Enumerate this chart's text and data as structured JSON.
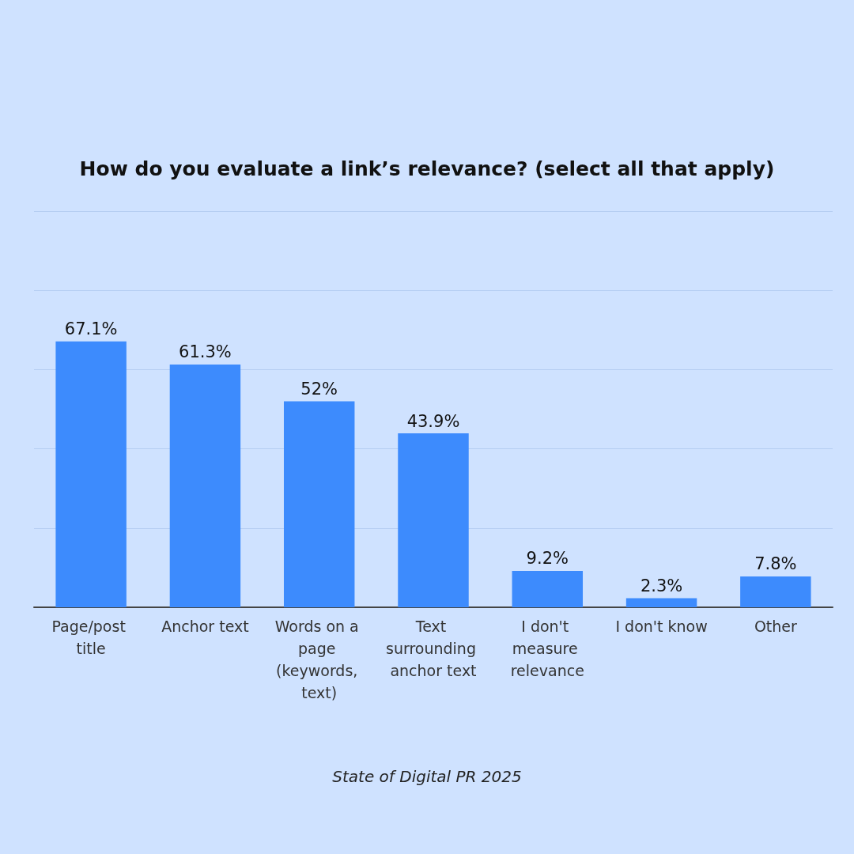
{
  "chart_data": {
    "type": "bar",
    "title": "How do you evaluate a link’s relevance? (select all that apply)",
    "categories": [
      "Page/post title",
      "Anchor text",
      "Words on a page (keywords, text)",
      "Text surrounding anchor text",
      "I don't measure relevance",
      "I don't know",
      "Other"
    ],
    "values": [
      67.1,
      61.3,
      52,
      43.9,
      9.2,
      2.3,
      7.8
    ],
    "value_labels": [
      "67.1%",
      "61.3%",
      "52%",
      "43.9%",
      "9.2%",
      "2.3%",
      "7.8%"
    ],
    "color": "#3d8bfd",
    "ylim": [
      0,
      100
    ],
    "yticks": [
      0,
      20,
      40,
      60,
      80,
      100
    ],
    "tick_labels": "x",
    "grid": "y",
    "annotations": [
      "State of Digital PR 2025"
    ]
  }
}
